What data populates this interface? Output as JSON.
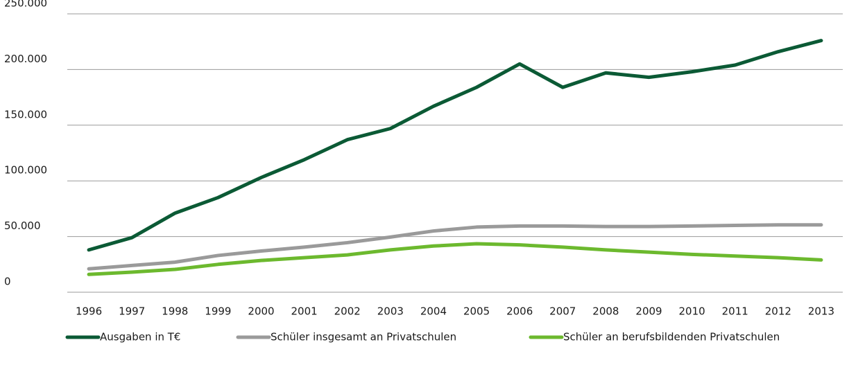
{
  "chart_data": {
    "type": "line",
    "categories": [
      "1996",
      "1997",
      "1998",
      "1999",
      "2000",
      "2001",
      "2002",
      "2003",
      "2004",
      "2005",
      "2006",
      "2007",
      "2008",
      "2009",
      "2010",
      "2011",
      "2012",
      "2013"
    ],
    "series": [
      {
        "name": "Ausgaben in T€",
        "color": "#0b5a35",
        "values": [
          38000,
          49000,
          71000,
          85000,
          103000,
          119000,
          137000,
          147000,
          167000,
          184000,
          205000,
          184000,
          197000,
          193000,
          198000,
          204000,
          216000,
          226000
        ]
      },
      {
        "name": "Schüler insgesamt an Privatschulen",
        "color": "#9a9a9a",
        "values": [
          21000,
          24000,
          27000,
          33000,
          37000,
          40500,
          44500,
          49500,
          55000,
          58500,
          59500,
          59500,
          59000,
          59000,
          59500,
          60000,
          60500,
          60500
        ]
      },
      {
        "name": "Schüler an berufsbildenden Privatschulen",
        "color": "#6cb92e",
        "values": [
          16000,
          18000,
          20500,
          25000,
          28500,
          31000,
          33500,
          38000,
          41500,
          43500,
          42500,
          40500,
          38000,
          36000,
          34000,
          32500,
          31000,
          29000
        ]
      }
    ],
    "ylim": [
      0,
      250000
    ],
    "yticks": [
      0,
      {
        "value": 50000,
        "label": "50.000"
      },
      {
        "value": 100000,
        "label": "100.000"
      },
      {
        "value": 150000,
        "label": "150.000"
      },
      {
        "value": 200000,
        "label": "200.000"
      },
      {
        "value": 250000,
        "label": "250.000"
      }
    ],
    "grid": true,
    "legend": "bottom"
  }
}
